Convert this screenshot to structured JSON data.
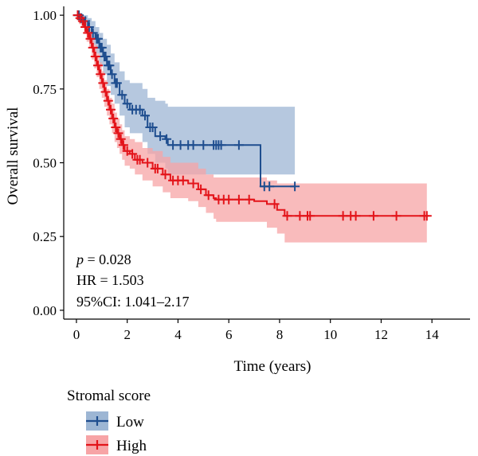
{
  "chart_data": {
    "type": "line",
    "subtype": "kaplan-meier",
    "title": "",
    "xlabel": "Time (years)",
    "ylabel": "Overall survival",
    "xlim": [
      -0.5,
      15.5
    ],
    "ylim": [
      -0.03,
      1.03
    ],
    "xticks": [
      0,
      2,
      4,
      6,
      8,
      10,
      12,
      14
    ],
    "yticks": [
      0.0,
      0.25,
      0.5,
      0.75,
      1.0
    ],
    "xtick_labels": [
      "0",
      "2",
      "4",
      "6",
      "8",
      "10",
      "12",
      "14"
    ],
    "ytick_labels": [
      "0.00",
      "0.25",
      "0.50",
      "0.75",
      "1.00"
    ],
    "grid": false,
    "annotations": {
      "p_symbol": "p",
      "p_rest": " = 0.028",
      "hr": "HR = 1.503",
      "ci": "95%CI: 1.041–2.17"
    },
    "legend": {
      "title": "Stromal score",
      "placement": "bottom-left",
      "entries": [
        "Low",
        "High"
      ]
    },
    "series": [
      {
        "name": "Low",
        "color": "#1f4e8f",
        "band_color": "#9db6d4",
        "steps": [
          [
            0,
            1.0
          ],
          [
            0.15,
            0.99
          ],
          [
            0.3,
            0.98
          ],
          [
            0.45,
            0.96
          ],
          [
            0.6,
            0.94
          ],
          [
            0.75,
            0.92
          ],
          [
            0.9,
            0.89
          ],
          [
            1.05,
            0.86
          ],
          [
            1.2,
            0.83
          ],
          [
            1.35,
            0.8
          ],
          [
            1.5,
            0.77
          ],
          [
            1.7,
            0.73
          ],
          [
            1.9,
            0.7
          ],
          [
            2.1,
            0.68
          ],
          [
            2.6,
            0.66
          ],
          [
            2.8,
            0.62
          ],
          [
            3.1,
            0.59
          ],
          [
            3.5,
            0.58
          ],
          [
            3.6,
            0.56
          ],
          [
            6.6,
            0.56
          ],
          [
            7.25,
            0.42
          ],
          [
            8.6,
            0.42
          ]
        ],
        "upper": [
          [
            0,
            1.0
          ],
          [
            0.15,
            1.0
          ],
          [
            0.3,
            1.0
          ],
          [
            0.45,
            0.99
          ],
          [
            0.6,
            0.98
          ],
          [
            0.75,
            0.96
          ],
          [
            0.9,
            0.94
          ],
          [
            1.05,
            0.92
          ],
          [
            1.2,
            0.9
          ],
          [
            1.35,
            0.87
          ],
          [
            1.5,
            0.84
          ],
          [
            1.7,
            0.81
          ],
          [
            1.9,
            0.78
          ],
          [
            2.1,
            0.77
          ],
          [
            2.6,
            0.75
          ],
          [
            2.8,
            0.72
          ],
          [
            3.1,
            0.71
          ],
          [
            3.5,
            0.7
          ],
          [
            3.6,
            0.69
          ],
          [
            7.25,
            0.69
          ],
          [
            8.6,
            0.77
          ]
        ],
        "lower": [
          [
            0,
            1.0
          ],
          [
            0.15,
            0.97
          ],
          [
            0.3,
            0.95
          ],
          [
            0.45,
            0.92
          ],
          [
            0.6,
            0.9
          ],
          [
            0.75,
            0.87
          ],
          [
            0.9,
            0.83
          ],
          [
            1.05,
            0.8
          ],
          [
            1.2,
            0.76
          ],
          [
            1.35,
            0.73
          ],
          [
            1.5,
            0.7
          ],
          [
            1.7,
            0.66
          ],
          [
            1.9,
            0.62
          ],
          [
            2.1,
            0.6
          ],
          [
            2.6,
            0.57
          ],
          [
            2.8,
            0.53
          ],
          [
            3.1,
            0.5
          ],
          [
            3.5,
            0.48
          ],
          [
            3.6,
            0.46
          ],
          [
            7.25,
            0.46
          ],
          [
            8.6,
            0.22
          ]
        ],
        "censored": [
          [
            0.05,
            1.0
          ],
          [
            0.1,
            1.0
          ],
          [
            0.2,
            0.99
          ],
          [
            0.35,
            0.98
          ],
          [
            0.5,
            0.96
          ],
          [
            0.65,
            0.94
          ],
          [
            0.8,
            0.92
          ],
          [
            0.85,
            0.92
          ],
          [
            0.95,
            0.89
          ],
          [
            1.0,
            0.89
          ],
          [
            1.1,
            0.86
          ],
          [
            1.15,
            0.86
          ],
          [
            1.25,
            0.83
          ],
          [
            1.3,
            0.83
          ],
          [
            1.4,
            0.8
          ],
          [
            1.55,
            0.77
          ],
          [
            1.6,
            0.77
          ],
          [
            1.8,
            0.73
          ],
          [
            2.0,
            0.7
          ],
          [
            2.2,
            0.68
          ],
          [
            2.35,
            0.68
          ],
          [
            2.5,
            0.68
          ],
          [
            2.7,
            0.66
          ],
          [
            2.9,
            0.62
          ],
          [
            3.0,
            0.62
          ],
          [
            3.3,
            0.59
          ],
          [
            3.55,
            0.58
          ],
          [
            3.8,
            0.56
          ],
          [
            4.1,
            0.56
          ],
          [
            4.4,
            0.56
          ],
          [
            4.6,
            0.56
          ],
          [
            5.0,
            0.56
          ],
          [
            5.4,
            0.56
          ],
          [
            5.5,
            0.56
          ],
          [
            5.6,
            0.56
          ],
          [
            5.7,
            0.56
          ],
          [
            6.4,
            0.56
          ],
          [
            7.4,
            0.42
          ],
          [
            7.6,
            0.42
          ],
          [
            8.6,
            0.42
          ]
        ]
      },
      {
        "name": "High",
        "color": "#e3141a",
        "band_color": "#f7a4a6",
        "steps": [
          [
            0,
            1.0
          ],
          [
            0.1,
            0.99
          ],
          [
            0.2,
            0.98
          ],
          [
            0.3,
            0.96
          ],
          [
            0.4,
            0.94
          ],
          [
            0.5,
            0.92
          ],
          [
            0.6,
            0.89
          ],
          [
            0.7,
            0.86
          ],
          [
            0.8,
            0.83
          ],
          [
            0.9,
            0.8
          ],
          [
            1.0,
            0.77
          ],
          [
            1.1,
            0.74
          ],
          [
            1.2,
            0.71
          ],
          [
            1.3,
            0.68
          ],
          [
            1.4,
            0.65
          ],
          [
            1.5,
            0.62
          ],
          [
            1.6,
            0.6
          ],
          [
            1.7,
            0.58
          ],
          [
            1.8,
            0.56
          ],
          [
            1.9,
            0.54
          ],
          [
            2.1,
            0.53
          ],
          [
            2.3,
            0.51
          ],
          [
            2.6,
            0.5
          ],
          [
            3.0,
            0.48
          ],
          [
            3.4,
            0.46
          ],
          [
            3.7,
            0.44
          ],
          [
            4.4,
            0.43
          ],
          [
            4.8,
            0.41
          ],
          [
            5.1,
            0.39
          ],
          [
            5.4,
            0.38
          ],
          [
            5.5,
            0.375
          ],
          [
            7.0,
            0.37
          ],
          [
            7.5,
            0.36
          ],
          [
            7.9,
            0.34
          ],
          [
            8.2,
            0.32
          ],
          [
            13.8,
            0.32
          ]
        ],
        "upper": [
          [
            0,
            1.0
          ],
          [
            0.1,
            1.0
          ],
          [
            0.2,
            0.99
          ],
          [
            0.3,
            0.98
          ],
          [
            0.4,
            0.96
          ],
          [
            0.5,
            0.95
          ],
          [
            0.6,
            0.92
          ],
          [
            0.7,
            0.9
          ],
          [
            0.8,
            0.87
          ],
          [
            0.9,
            0.84
          ],
          [
            1.0,
            0.81
          ],
          [
            1.1,
            0.78
          ],
          [
            1.2,
            0.75
          ],
          [
            1.3,
            0.72
          ],
          [
            1.4,
            0.7
          ],
          [
            1.5,
            0.67
          ],
          [
            1.6,
            0.65
          ],
          [
            1.7,
            0.63
          ],
          [
            1.8,
            0.61
          ],
          [
            1.9,
            0.59
          ],
          [
            2.1,
            0.58
          ],
          [
            2.3,
            0.57
          ],
          [
            2.6,
            0.55
          ],
          [
            3.0,
            0.54
          ],
          [
            3.4,
            0.52
          ],
          [
            3.7,
            0.5
          ],
          [
            4.4,
            0.5
          ],
          [
            4.8,
            0.48
          ],
          [
            5.1,
            0.46
          ],
          [
            5.4,
            0.45
          ],
          [
            5.5,
            0.45
          ],
          [
            7.0,
            0.45
          ],
          [
            7.5,
            0.44
          ],
          [
            7.9,
            0.43
          ],
          [
            8.2,
            0.43
          ],
          [
            13.8,
            0.43
          ]
        ],
        "lower": [
          [
            0,
            1.0
          ],
          [
            0.1,
            0.97
          ],
          [
            0.2,
            0.96
          ],
          [
            0.3,
            0.94
          ],
          [
            0.4,
            0.91
          ],
          [
            0.5,
            0.89
          ],
          [
            0.6,
            0.85
          ],
          [
            0.7,
            0.82
          ],
          [
            0.8,
            0.79
          ],
          [
            0.9,
            0.75
          ],
          [
            1.0,
            0.72
          ],
          [
            1.1,
            0.69
          ],
          [
            1.2,
            0.66
          ],
          [
            1.3,
            0.63
          ],
          [
            1.4,
            0.6
          ],
          [
            1.5,
            0.57
          ],
          [
            1.6,
            0.55
          ],
          [
            1.7,
            0.53
          ],
          [
            1.8,
            0.51
          ],
          [
            1.9,
            0.49
          ],
          [
            2.1,
            0.48
          ],
          [
            2.3,
            0.46
          ],
          [
            2.6,
            0.44
          ],
          [
            3.0,
            0.42
          ],
          [
            3.4,
            0.4
          ],
          [
            3.7,
            0.38
          ],
          [
            4.4,
            0.37
          ],
          [
            4.8,
            0.35
          ],
          [
            5.1,
            0.33
          ],
          [
            5.4,
            0.31
          ],
          [
            5.5,
            0.3
          ],
          [
            7.0,
            0.3
          ],
          [
            7.5,
            0.28
          ],
          [
            7.9,
            0.26
          ],
          [
            8.2,
            0.23
          ],
          [
            13.8,
            0.23
          ]
        ],
        "censored": [
          [
            0.05,
            1.0
          ],
          [
            0.15,
            0.99
          ],
          [
            0.25,
            0.98
          ],
          [
            0.35,
            0.96
          ],
          [
            0.45,
            0.94
          ],
          [
            0.55,
            0.92
          ],
          [
            0.65,
            0.89
          ],
          [
            0.75,
            0.86
          ],
          [
            0.85,
            0.83
          ],
          [
            0.95,
            0.8
          ],
          [
            1.05,
            0.77
          ],
          [
            1.15,
            0.74
          ],
          [
            1.25,
            0.71
          ],
          [
            1.35,
            0.68
          ],
          [
            1.45,
            0.65
          ],
          [
            1.55,
            0.62
          ],
          [
            1.65,
            0.6
          ],
          [
            1.75,
            0.58
          ],
          [
            1.85,
            0.56
          ],
          [
            2.0,
            0.54
          ],
          [
            2.2,
            0.53
          ],
          [
            2.4,
            0.51
          ],
          [
            2.5,
            0.51
          ],
          [
            2.8,
            0.5
          ],
          [
            3.1,
            0.48
          ],
          [
            3.2,
            0.48
          ],
          [
            3.5,
            0.46
          ],
          [
            3.8,
            0.44
          ],
          [
            4.0,
            0.44
          ],
          [
            4.2,
            0.44
          ],
          [
            4.6,
            0.43
          ],
          [
            4.9,
            0.41
          ],
          [
            5.2,
            0.39
          ],
          [
            5.6,
            0.375
          ],
          [
            5.8,
            0.375
          ],
          [
            6.0,
            0.375
          ],
          [
            6.4,
            0.375
          ],
          [
            6.8,
            0.375
          ],
          [
            7.8,
            0.36
          ],
          [
            8.3,
            0.32
          ],
          [
            8.8,
            0.32
          ],
          [
            9.1,
            0.32
          ],
          [
            9.2,
            0.32
          ],
          [
            10.5,
            0.32
          ],
          [
            10.8,
            0.32
          ],
          [
            11.0,
            0.32
          ],
          [
            11.7,
            0.32
          ],
          [
            12.6,
            0.32
          ],
          [
            13.7,
            0.32
          ],
          [
            13.8,
            0.32
          ]
        ]
      }
    ]
  }
}
